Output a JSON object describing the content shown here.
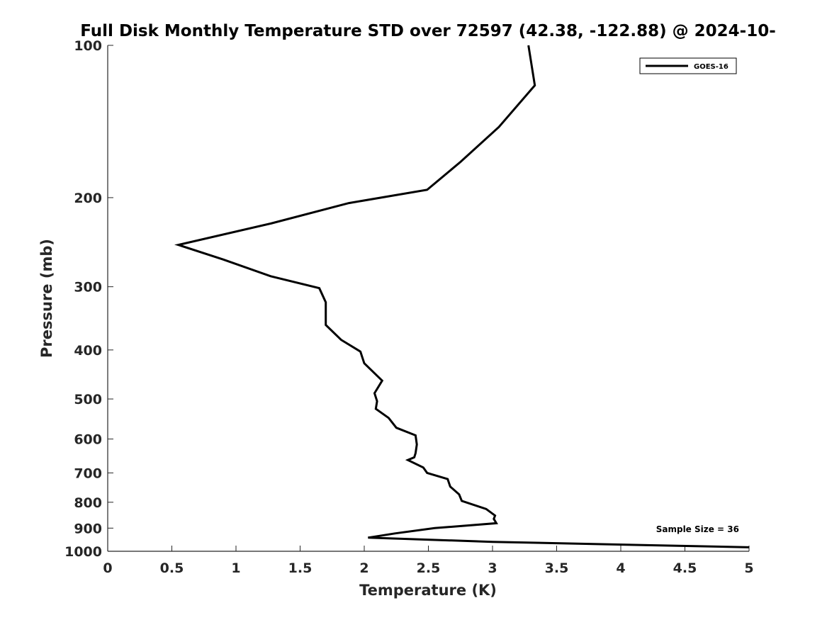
{
  "chart_data": {
    "type": "line",
    "title": "Full Disk Monthly Temperature STD over 72597 (42.38, -122.88) @ 2024-10-",
    "xlabel": "Temperature (K)",
    "ylabel": "Pressure (mb)",
    "xlim": [
      0,
      5
    ],
    "ylim": [
      100,
      1000
    ],
    "y_scale": "log",
    "y_reversed": true,
    "grid": false,
    "legend_position": "top-right",
    "x_ticks": [
      "0",
      "0.5",
      "1",
      "1.5",
      "2",
      "2.5",
      "3",
      "3.5",
      "4",
      "4.5",
      "5"
    ],
    "y_ticks": [
      "100",
      "200",
      "300",
      "400",
      "500",
      "600",
      "700",
      "800",
      "900",
      "1000"
    ],
    "series": [
      {
        "name": "GOES-16",
        "color": "#000000",
        "points": [
          [
            3.28,
            100
          ],
          [
            3.33,
            120
          ],
          [
            3.05,
            145
          ],
          [
            2.75,
            170
          ],
          [
            2.49,
            193
          ],
          [
            1.88,
            205
          ],
          [
            1.27,
            225
          ],
          [
            0.55,
            248
          ],
          [
            0.9,
            265
          ],
          [
            1.27,
            286
          ],
          [
            1.65,
            302
          ],
          [
            1.7,
            322
          ],
          [
            1.7,
            338
          ],
          [
            1.7,
            357
          ],
          [
            1.82,
            382
          ],
          [
            1.97,
            403
          ],
          [
            2.0,
            425
          ],
          [
            2.14,
            460
          ],
          [
            2.08,
            487
          ],
          [
            2.1,
            505
          ],
          [
            2.09,
            523
          ],
          [
            2.19,
            545
          ],
          [
            2.25,
            570
          ],
          [
            2.4,
            590
          ],
          [
            2.41,
            615
          ],
          [
            2.4,
            640
          ],
          [
            2.39,
            652
          ],
          [
            2.34,
            660
          ],
          [
            2.46,
            683
          ],
          [
            2.49,
            700
          ],
          [
            2.65,
            720
          ],
          [
            2.67,
            745
          ],
          [
            2.74,
            772
          ],
          [
            2.76,
            795
          ],
          [
            2.95,
            825
          ],
          [
            3.02,
            850
          ],
          [
            3.01,
            863
          ],
          [
            3.03,
            880
          ],
          [
            2.55,
            900
          ],
          [
            2.24,
            922
          ],
          [
            2.03,
            940
          ],
          [
            3.0,
            958
          ],
          [
            5.0,
            982
          ]
        ]
      }
    ],
    "annotations": [
      "Sample Size = 36"
    ]
  }
}
